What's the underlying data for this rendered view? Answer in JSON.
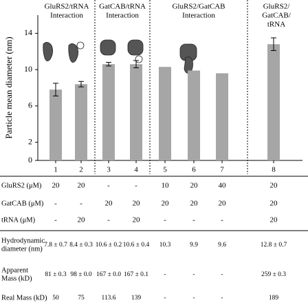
{
  "chart_data": {
    "type": "bar",
    "ylabel": "Particle mean diameter (nm)",
    "categories": [
      "1",
      "2",
      "3",
      "4",
      "5",
      "6",
      "7",
      "8"
    ],
    "values": [
      7.8,
      8.4,
      10.6,
      10.6,
      10.3,
      9.9,
      9.6,
      12.8
    ],
    "errors": [
      0.7,
      0.3,
      0.2,
      0.4,
      null,
      null,
      null,
      0.7
    ],
    "color": "#a6a6a6",
    "ylim": [
      0,
      16
    ],
    "yticks": [
      0,
      2,
      6,
      10,
      14
    ],
    "groups": [
      {
        "label": [
          "GluRS2/tRNA",
          "Interaction"
        ]
      },
      {
        "label": [
          "GatCAB/tRNA",
          "Interaction"
        ]
      },
      {
        "label": [
          "GluRS2/GatCAB",
          "Interaction"
        ]
      },
      {
        "label": [
          "GluRS2/",
          "GatCAB/",
          "tRNA"
        ]
      }
    ]
  },
  "table": {
    "rows": [
      {
        "label": [
          "GluRS2 (μM)"
        ],
        "cells": [
          "20",
          "20",
          "-",
          "-",
          "10",
          "20",
          "40",
          "20"
        ]
      },
      {
        "label": [
          "GatCAB (μM)"
        ],
        "cells": [
          "-",
          "-",
          "20",
          "20",
          "20",
          "20",
          "20",
          "20"
        ]
      },
      {
        "label": [
          "tRNA (μM)"
        ],
        "cells": [
          "-",
          "20",
          "-",
          "20",
          "-",
          "-",
          "-",
          "20"
        ]
      },
      {
        "label": [
          "Hydrodynamic",
          "diameter (nm)"
        ],
        "cells": [
          "7.8 ± 0.7",
          "8.4 ± 0.3",
          "10.6 ± 0.2",
          "10.6 ± 0.4",
          "10.3",
          "9.9",
          "9.6",
          "12.8 ± 0.7"
        ]
      },
      {
        "label": [
          "Apparent",
          "Mass (kD)"
        ],
        "cells": [
          "81 ± 0.3",
          "98 ± 0.0",
          "167 ± 0.0",
          "167 ± 0.1",
          "-",
          "-",
          "-",
          "259 ± 0.3"
        ]
      },
      {
        "label": [
          "Real Mass (kD)"
        ],
        "cells": [
          "50",
          "75",
          "113.6",
          "139",
          "-",
          "-",
          "-",
          "189"
        ]
      }
    ]
  }
}
